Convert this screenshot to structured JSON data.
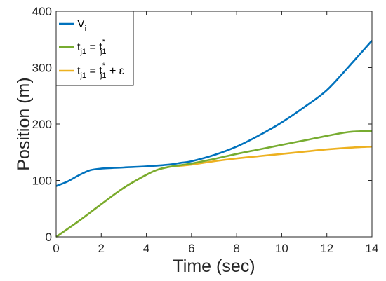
{
  "chart_data": {
    "type": "line",
    "title": "",
    "xlabel": "Time (sec)",
    "ylabel": "Position (m)",
    "xlim": [
      0,
      14
    ],
    "ylim": [
      0,
      400
    ],
    "xticks": [
      0,
      2,
      4,
      6,
      8,
      10,
      12,
      14
    ],
    "yticks": [
      0,
      100,
      200,
      300,
      400
    ],
    "xtick_labels": [
      "0",
      "2",
      "4",
      "6",
      "8",
      "10",
      "12",
      "14"
    ],
    "ytick_labels": [
      "0",
      "100",
      "200",
      "300",
      "400"
    ],
    "grid": false,
    "legend_position": "top-left",
    "series": [
      {
        "name": "V_i",
        "legend": {
          "base": "V",
          "sub": "i",
          "rest": ""
        },
        "color": "#0072BD",
        "x": [
          0,
          0.5,
          1,
          1.5,
          2,
          3,
          4,
          5,
          5.5,
          6,
          7,
          8,
          9,
          10,
          11,
          12,
          13,
          14
        ],
        "y": [
          90,
          98,
          109,
          118,
          121,
          123,
          125,
          128,
          131,
          134,
          145,
          160,
          180,
          203,
          230,
          260,
          303,
          348
        ]
      },
      {
        "name": "t_j1 = t*_j1",
        "legend": {
          "base": "t",
          "sub": "j1",
          "mid": " = t",
          "sup": "*",
          "sub2": "j1",
          "rest": ""
        },
        "color": "#77AC30",
        "x": [
          0,
          1,
          2,
          3,
          4,
          4.5,
          5,
          5.5,
          6,
          7,
          8,
          9,
          10,
          11,
          12,
          13,
          14
        ],
        "y": [
          0,
          28,
          58,
          87,
          110,
          119,
          124,
          127,
          130,
          138,
          147,
          155,
          163,
          171,
          179,
          186,
          188
        ]
      },
      {
        "name": "t_j1 = t*_j1 + ε",
        "legend": {
          "base": "t",
          "sub": "j1",
          "mid": " = t",
          "sup": "*",
          "sub2": "j1",
          "rest": " + ε"
        },
        "color": "#EDB120",
        "x": [
          0,
          1,
          2,
          3,
          4,
          4.5,
          5,
          5.5,
          6,
          7,
          8,
          9,
          10,
          11,
          12,
          13,
          14
        ],
        "y": [
          0,
          28,
          58,
          87,
          110,
          119,
          124,
          126,
          128,
          134,
          139,
          143,
          147,
          151,
          155,
          158,
          160
        ]
      }
    ]
  }
}
